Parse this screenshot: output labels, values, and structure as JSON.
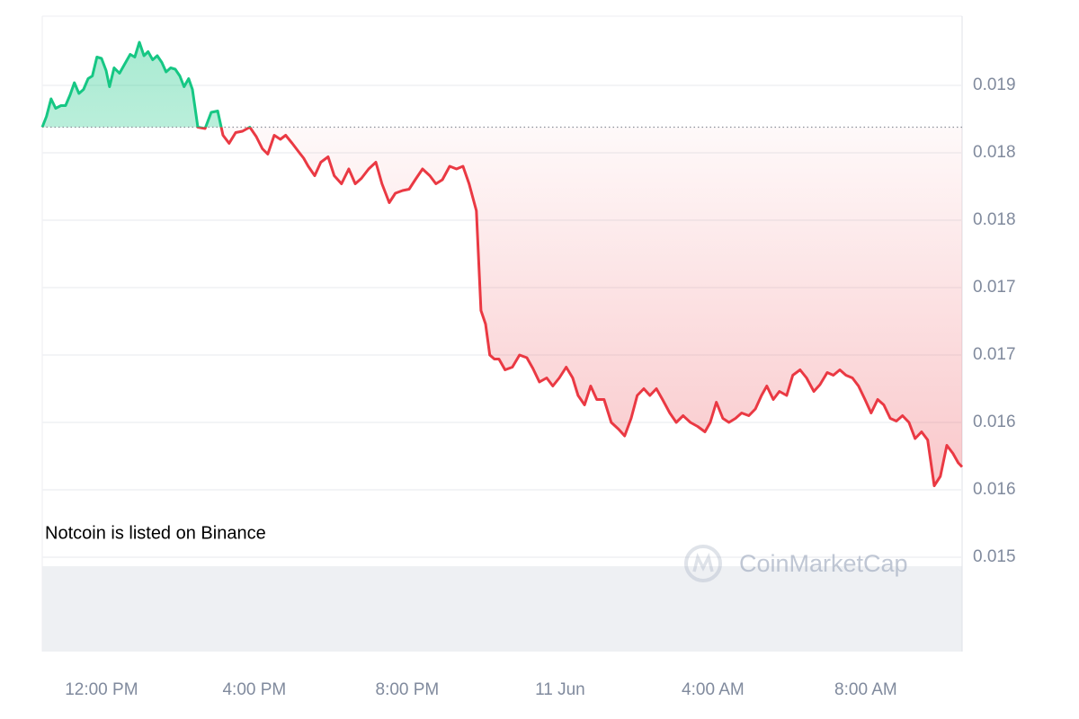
{
  "chart_data": {
    "type": "line",
    "annotation": "Notcoin is listed on Binance",
    "watermark": "CoinMarketCap",
    "baseline": 0.01869,
    "up_color": "#16c784",
    "down_color": "#ea3943",
    "grid": true,
    "xlim": [
      10.45,
      34.52
    ],
    "xticks": [
      {
        "value": 12,
        "label": "12:00 PM"
      },
      {
        "value": 16,
        "label": "4:00 PM"
      },
      {
        "value": 20,
        "label": "8:00 PM"
      },
      {
        "value": 24,
        "label": "11 Jun"
      },
      {
        "value": 28,
        "label": "4:00 AM"
      },
      {
        "value": 32,
        "label": "8:00 AM"
      }
    ],
    "ylim": [
      0.0148,
      0.0195
    ],
    "yticks": [
      0.019,
      {
        "value": 0.0185,
        "label": "0.018"
      },
      0.018,
      {
        "value": 0.0175,
        "label": "0.017"
      },
      0.017,
      {
        "value": 0.0165,
        "label": "0.016"
      },
      0.016,
      {
        "value": 0.0155,
        "label": "0.015"
      }
    ],
    "x": [
      10.45,
      10.56,
      10.68,
      10.8,
      10.94,
      11.06,
      11.18,
      11.29,
      11.41,
      11.53,
      11.65,
      11.76,
      11.88,
      12.0,
      12.12,
      12.21,
      12.33,
      12.47,
      12.59,
      12.75,
      12.87,
      12.99,
      13.11,
      13.22,
      13.34,
      13.46,
      13.58,
      13.69,
      13.81,
      13.93,
      14.05,
      14.16,
      14.28,
      14.38,
      14.52,
      14.71,
      14.87,
      15.04,
      15.18,
      15.34,
      15.51,
      15.69,
      15.88,
      16.05,
      16.21,
      16.35,
      16.52,
      16.68,
      16.82,
      16.99,
      17.18,
      17.29,
      17.41,
      17.58,
      17.74,
      17.93,
      18.09,
      18.28,
      18.47,
      18.64,
      18.8,
      18.99,
      19.18,
      19.34,
      19.53,
      19.69,
      19.88,
      20.05,
      20.21,
      20.4,
      20.59,
      20.75,
      20.92,
      21.11,
      21.29,
      21.46,
      21.62,
      21.81,
      21.93,
      22.05,
      22.16,
      22.28,
      22.4,
      22.56,
      22.75,
      22.94,
      23.13,
      23.29,
      23.46,
      23.65,
      23.81,
      23.98,
      24.16,
      24.33,
      24.47,
      24.64,
      24.8,
      24.96,
      25.15,
      25.34,
      25.53,
      25.69,
      25.86,
      26.02,
      26.19,
      26.35,
      26.52,
      26.68,
      26.87,
      27.04,
      27.22,
      27.41,
      27.6,
      27.79,
      27.93,
      28.09,
      28.26,
      28.42,
      28.59,
      28.75,
      28.94,
      29.11,
      29.27,
      29.41,
      29.58,
      29.74,
      29.93,
      30.09,
      30.28,
      30.45,
      30.64,
      30.8,
      30.99,
      31.15,
      31.32,
      31.48,
      31.65,
      31.81,
      31.98,
      32.14,
      32.31,
      32.47,
      32.64,
      32.8,
      32.96,
      33.13,
      33.29,
      33.46,
      33.62,
      33.79,
      33.95,
      34.12,
      34.28,
      34.42,
      34.52
    ],
    "values": [
      0.01869,
      0.01877,
      0.0189,
      0.01883,
      0.01885,
      0.01885,
      0.01893,
      0.01902,
      0.01894,
      0.01897,
      0.01905,
      0.01907,
      0.01921,
      0.0192,
      0.01911,
      0.01899,
      0.01913,
      0.01909,
      0.01915,
      0.01923,
      0.01921,
      0.01932,
      0.01922,
      0.01925,
      0.01919,
      0.01922,
      0.01917,
      0.0191,
      0.01913,
      0.01912,
      0.01907,
      0.01899,
      0.01905,
      0.01897,
      0.01869,
      0.01868,
      0.0188,
      0.01881,
      0.01863,
      0.01857,
      0.01865,
      0.01866,
      0.01869,
      0.01862,
      0.01853,
      0.01849,
      0.01863,
      0.0186,
      0.01863,
      0.01857,
      0.0185,
      0.01846,
      0.0184,
      0.01833,
      0.01843,
      0.01847,
      0.01833,
      0.01827,
      0.01838,
      0.01827,
      0.01831,
      0.01838,
      0.01843,
      0.01827,
      0.01813,
      0.0182,
      0.01822,
      0.01823,
      0.0183,
      0.01838,
      0.01833,
      0.01827,
      0.0183,
      0.0184,
      0.01838,
      0.0184,
      0.01827,
      0.01807,
      0.01733,
      0.01723,
      0.017,
      0.01697,
      0.01697,
      0.01689,
      0.01691,
      0.017,
      0.01698,
      0.0169,
      0.0168,
      0.01683,
      0.01677,
      0.01683,
      0.01691,
      0.01683,
      0.0167,
      0.01663,
      0.01677,
      0.01667,
      0.01667,
      0.0165,
      0.01645,
      0.0164,
      0.01653,
      0.0167,
      0.01675,
      0.0167,
      0.01675,
      0.01667,
      0.01657,
      0.0165,
      0.01655,
      0.0165,
      0.01647,
      0.01643,
      0.0165,
      0.01665,
      0.01653,
      0.0165,
      0.01653,
      0.01657,
      0.01655,
      0.0166,
      0.0167,
      0.01677,
      0.01667,
      0.01673,
      0.0167,
      0.01685,
      0.01689,
      0.01683,
      0.01673,
      0.01678,
      0.01687,
      0.01685,
      0.01689,
      0.01685,
      0.01683,
      0.01677,
      0.01667,
      0.01657,
      0.01667,
      0.01663,
      0.01653,
      0.01651,
      0.01655,
      0.0165,
      0.01638,
      0.01643,
      0.01637,
      0.01603,
      0.0161,
      0.01633,
      0.01627,
      0.0162,
      0.01617
    ]
  }
}
